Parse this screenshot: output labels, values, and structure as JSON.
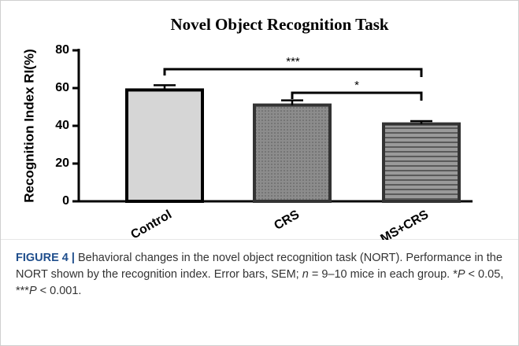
{
  "chart_data": {
    "type": "bar",
    "title": "Novel Object Recognition Task",
    "ylabel": "Recognition Index RI(%)",
    "categories": [
      "Control",
      "CRS",
      "MS+CRS"
    ],
    "values": [
      59,
      51,
      41
    ],
    "errors": [
      2.5,
      2.5,
      1.5
    ],
    "colors": [
      "#d6d6d6",
      "#8c8c8c",
      "#9a9a9a"
    ],
    "ylim": [
      0,
      80
    ],
    "yticks": [
      0,
      20,
      40,
      60,
      80
    ],
    "annotations": [
      "***",
      "*"
    ]
  },
  "caption": {
    "label": "FIGURE 4 |",
    "parts": [
      " Behavioral changes in the novel object recognition task (NORT). Performance in the NORT shown by the recognition index. Error bars, SEM; ",
      "n",
      " = 9–10 mice in each group. *",
      "P",
      " < 0.05, ***",
      "P",
      " < 0.001."
    ]
  }
}
